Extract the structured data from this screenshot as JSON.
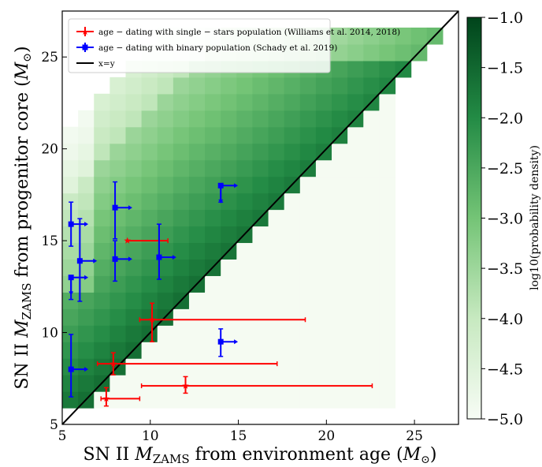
{
  "chart_data": {
    "type": "heatmap",
    "xlabel_main": "SN II ",
    "xlabel_sym": "M",
    "xlabel_sub": "ZAMS",
    "xlabel_tail": " from environment age (",
    "xlabel_unit_sym": "M",
    "xlabel_unit_sub": "⊙",
    "xlabel_close": ")",
    "ylabel_main": "SN II ",
    "ylabel_sym": "M",
    "ylabel_sub": "ZAMS",
    "ylabel_tail": " from progenitor core (",
    "ylabel_unit_sym": "M",
    "ylabel_unit_sub": "⊙",
    "ylabel_close": ")",
    "xlim": [
      5,
      27.5
    ],
    "ylim": [
      5,
      27.5
    ],
    "xticks": [
      "5",
      "10",
      "15",
      "20",
      "25"
    ],
    "yticks": [
      "5",
      "10",
      "15",
      "20",
      "25"
    ],
    "colorbar": {
      "label": "log10(probability density)",
      "range": [
        -5.0,
        -1.0
      ],
      "ticks": [
        "−1.0",
        "−1.5",
        "−2.0",
        "−2.5",
        "−3.0",
        "−3.5",
        "−4.0",
        "−4.5",
        "−5.0"
      ],
      "color_low": "#f7fcf5",
      "color_high": "#00441b"
    },
    "heatmap": {
      "bin_width": 0.9,
      "description_range_x": [
        5.0,
        27.5
      ],
      "description_range_y": [
        5.0,
        27.5
      ]
    },
    "legend": {
      "placement": "top-left",
      "entries": [
        {
          "label": "age − dating with single − stars population (Williams et al. 2014, 2018)",
          "color": "#ff0000",
          "marker": "star"
        },
        {
          "label": "age − dating with binary population (Schady et al. 2019)",
          "color": "#0000ff",
          "marker": "square"
        },
        {
          "label": "x=y",
          "color": "#000000",
          "marker": "line"
        }
      ]
    },
    "series": [
      {
        "name": "age − dating with single − stars population (Williams et al. 2014, 2018)",
        "color": "#ff0000",
        "points": [
          {
            "x": 8.7,
            "y": 15.0,
            "xerr": [
              0,
              2.3
            ],
            "yerr": [
              0,
              0
            ]
          },
          {
            "x": 10.1,
            "y": 10.7,
            "xerr": [
              0.7,
              8.7
            ],
            "yerr": [
              1.2,
              0.9
            ]
          },
          {
            "x": 7.9,
            "y": 8.3,
            "xerr": [
              0.9,
              9.3
            ],
            "yerr": [
              0.6,
              0.6
            ]
          },
          {
            "x": 7.5,
            "y": 6.4,
            "xerr": [
              0.3,
              1.9
            ],
            "yerr": [
              0.4,
              0.6
            ]
          },
          {
            "x": 12.0,
            "y": 7.1,
            "xerr": [
              2.5,
              10.6
            ],
            "yerr": [
              0.4,
              0.5
            ]
          }
        ]
      },
      {
        "name": "age − dating with binary population (Schady et al. 2019)",
        "color": "#0000ff",
        "points": [
          {
            "x": 5.5,
            "y": 15.9,
            "yerr": [
              1.2,
              1.2
            ],
            "xlim": "lower"
          },
          {
            "x": 6.0,
            "y": 13.9,
            "yerr": [
              2.2,
              2.3
            ],
            "xlim": "lower"
          },
          {
            "x": 5.5,
            "y": 13.0,
            "yerr": [
              1.2,
              0
            ],
            "xlim": "lower",
            "ylim": "upper"
          },
          {
            "x": 8.0,
            "y": 16.8,
            "yerr": [
              1.7,
              1.4
            ],
            "xlim": "lower"
          },
          {
            "x": 8.0,
            "y": 14.0,
            "yerr": [
              1.2,
              1.0
            ],
            "xlim": "lower"
          },
          {
            "x": 10.5,
            "y": 14.1,
            "yerr": [
              1.2,
              1.8
            ],
            "xlim": "lower"
          },
          {
            "x": 14.0,
            "y": 18.0,
            "yerr": [
              0.9,
              0
            ],
            "xlim": "lower",
            "ylim": "upper"
          },
          {
            "x": 5.5,
            "y": 8.0,
            "yerr": [
              1.5,
              1.9
            ],
            "xlim": "lower"
          },
          {
            "x": 14.0,
            "y": 9.5,
            "yerr": [
              0.8,
              0.7
            ],
            "xlim": "lower"
          }
        ]
      }
    ]
  }
}
